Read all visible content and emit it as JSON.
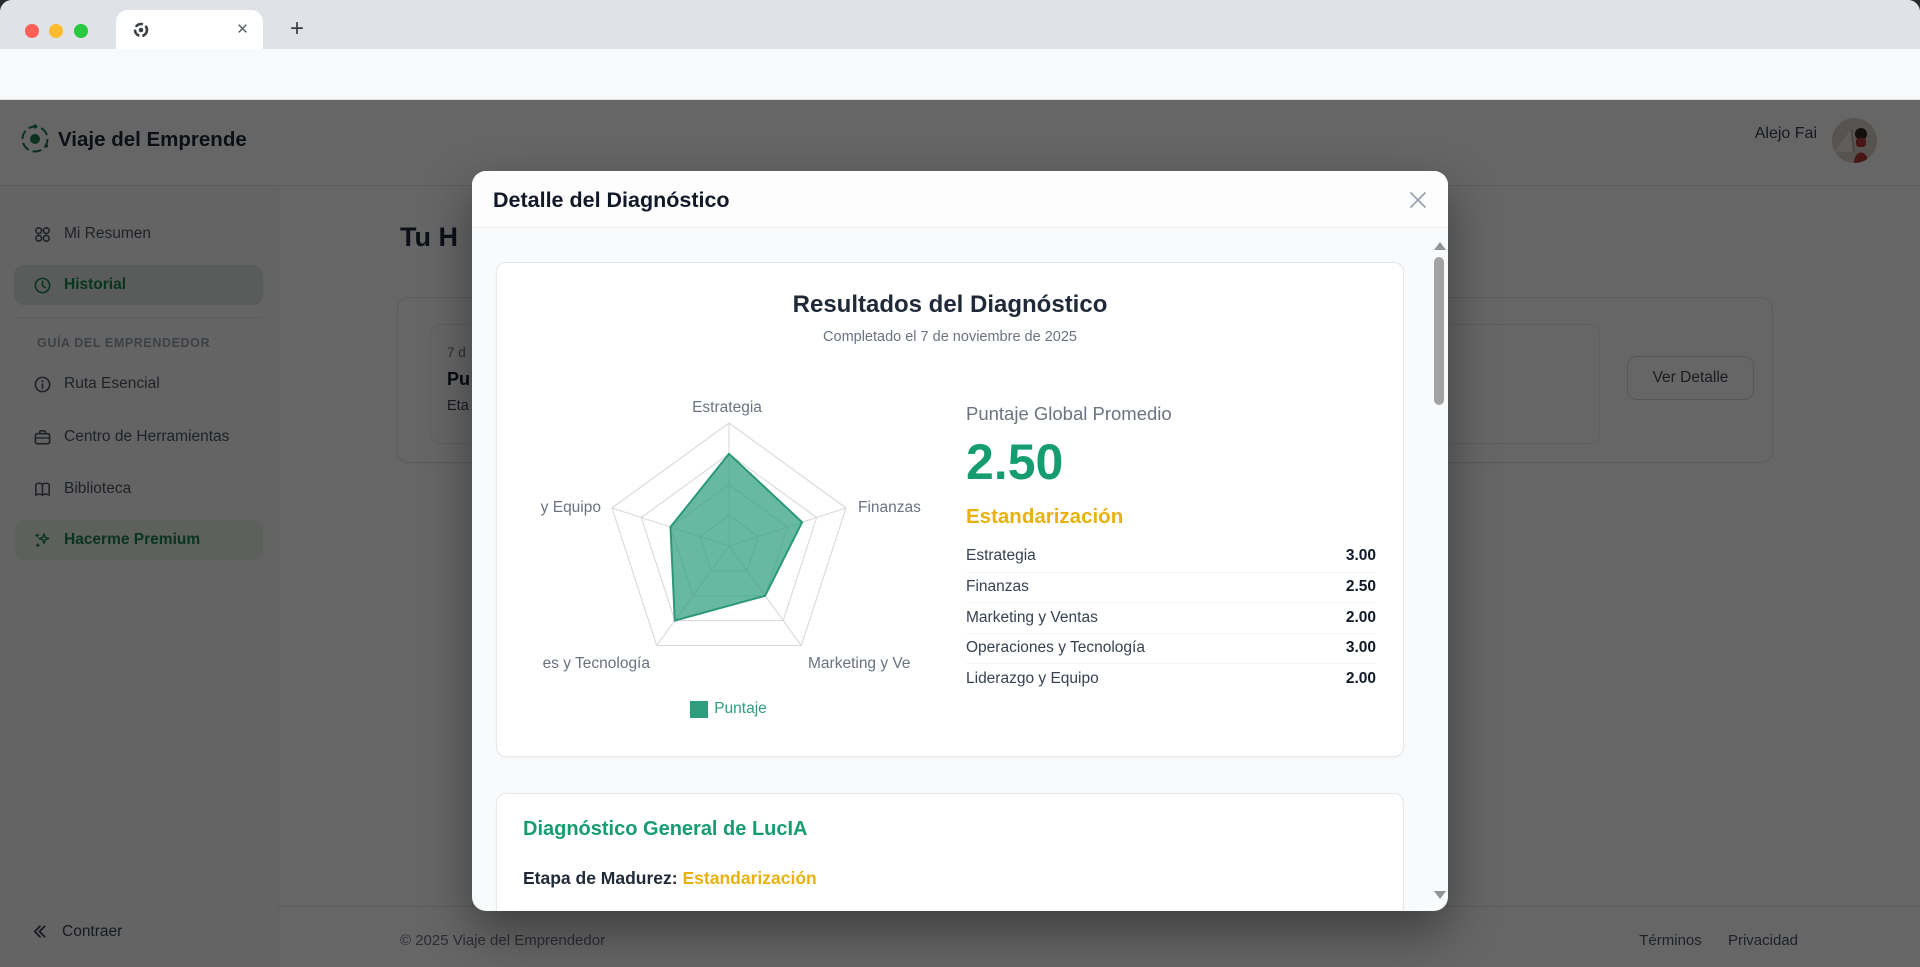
{
  "browser": {
    "tab_title": "",
    "url": ""
  },
  "app": {
    "logo_title": "Viaje del Emprende",
    "user_name": "Alejo Fai",
    "sidebar": {
      "items": [
        {
          "label": "Mi Resumen",
          "icon": "grid-icon"
        },
        {
          "label": "Historial",
          "icon": "clock-icon"
        }
      ],
      "section_label": "GUÍA DEL EMPRENDEDOR",
      "guide_items": [
        {
          "label": "Ruta Esencial",
          "icon": "info-icon"
        },
        {
          "label": "Centro de Herramientas",
          "icon": "briefcase-icon"
        },
        {
          "label": "Biblioteca",
          "icon": "book-icon"
        },
        {
          "label": "Hacerme Premium",
          "icon": "sparkles-icon"
        }
      ],
      "collapse_label": "Contraer"
    },
    "main": {
      "heading_visible": "Tu H",
      "history_card": {
        "date_visible": "7 d",
        "line2_visible": "Pu",
        "line3_visible": "Eta",
        "button_label": "Ver Detalle"
      },
      "footer": {
        "copyright": "© 2025 Viaje del Emprendedor",
        "links": [
          {
            "label": "Términos"
          },
          {
            "label": "Privacidad"
          }
        ]
      }
    }
  },
  "modal": {
    "title": "Detalle del Diagnóstico",
    "results": {
      "title": "Resultados del Diagnóstico",
      "subtitle": "Completado el 7 de noviembre de 2025",
      "global_label": "Puntaje Global Promedio",
      "global_score": "2.50",
      "stage": "Estandarización",
      "scores": [
        {
          "name": "Estrategia",
          "value": "3.00"
        },
        {
          "name": "Finanzas",
          "value": "2.50"
        },
        {
          "name": "Marketing y Ventas",
          "value": "2.00"
        },
        {
          "name": "Operaciones y Tecnología",
          "value": "3.00"
        },
        {
          "name": "Liderazgo y Equipo",
          "value": "2.00"
        }
      ]
    },
    "lucia": {
      "title": "Diagnóstico General de LucIA",
      "stage_label": "Etapa de Madurez:",
      "stage_value": "Estandarización"
    }
  },
  "chart_data": {
    "type": "radar",
    "categories": [
      "Estrategia",
      "Finanzas",
      "Marketing y Ventas",
      "Operaciones y Tecnología",
      "Liderazgo y Equipo"
    ],
    "values": [
      3.0,
      2.5,
      2.0,
      3.0,
      2.0
    ],
    "max": 4,
    "levels": 4,
    "legend": "Puntaje",
    "title": "",
    "visible_axis_labels": [
      "Estrategia",
      "Finanzas",
      "Marketing y Ve",
      "es y Tecnología",
      "y Equipo"
    ],
    "colors": {
      "fill": "rgba(45,158,125,0.72)",
      "stroke": "#2b9878",
      "grid": "#d9d9d9",
      "label": "#6b7280",
      "legend": "#2d9e7d"
    }
  },
  "colors": {
    "brand_green": "#169d6f",
    "stage_amber": "#e9b10e"
  }
}
